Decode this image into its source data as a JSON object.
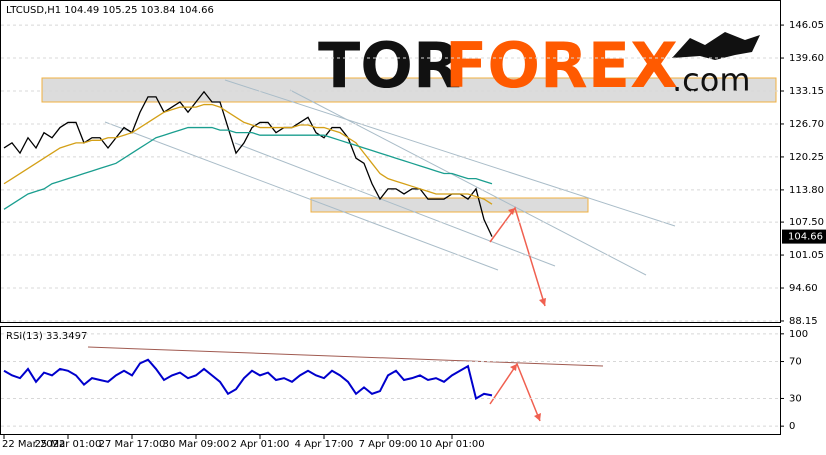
{
  "chart_data": [
    {
      "type": "line",
      "title": "LTCUSD,H1  104.49 105.25 103.84 104.66",
      "categories": [
        "22 Mar 2022",
        null,
        null,
        null,
        null,
        null,
        null,
        null,
        "25 Mar 01:00",
        null,
        null,
        null,
        null,
        null,
        null,
        null,
        "27 Mar 17:00",
        null,
        null,
        null,
        null,
        null,
        null,
        null,
        "30 Mar 09:00",
        null,
        null,
        null,
        null,
        null,
        null,
        null,
        "2 Apr 01:00",
        null,
        null,
        null,
        null,
        null,
        null,
        null,
        "4 Apr 17:00",
        null,
        null,
        null,
        null,
        null,
        null,
        null,
        "7 Apr 09:00",
        null,
        null,
        null,
        null,
        null,
        null,
        null,
        "10 Apr 01:00",
        null,
        null,
        null,
        null,
        null
      ],
      "series": [
        {
          "color": "#000000",
          "values": [
            122,
            123,
            121,
            124,
            122,
            125,
            124,
            126,
            127,
            127,
            123,
            124,
            124,
            122,
            124,
            126,
            125,
            129,
            132,
            132,
            129,
            130,
            131,
            129,
            131,
            133,
            131,
            131,
            126,
            121,
            123,
            126,
            127,
            127,
            125,
            126,
            126,
            127,
            128,
            125,
            124,
            126,
            126,
            124,
            120,
            119,
            115,
            112,
            114,
            114,
            113,
            114,
            114,
            112,
            112,
            112,
            113,
            113,
            112,
            114,
            108,
            104.66
          ]
        },
        {
          "color": "#d4a017",
          "values": [
            115,
            116,
            117,
            118,
            119,
            120,
            121,
            122,
            122.5,
            123,
            123,
            123.5,
            123.5,
            124,
            124,
            124.5,
            125,
            126,
            127,
            128,
            129,
            129.5,
            130,
            130,
            130,
            130.5,
            130.5,
            130,
            129,
            128,
            127,
            126.5,
            126,
            126,
            126,
            126,
            126,
            126.5,
            126.5,
            126,
            126,
            125.5,
            125,
            124,
            123,
            121,
            119,
            117,
            116,
            115.5,
            115,
            114.5,
            114,
            113.5,
            113,
            113,
            113,
            113,
            113,
            112.5,
            112,
            111
          ]
        },
        {
          "color": "#1a9e8f",
          "values": [
            110,
            111,
            112,
            113,
            113.5,
            114,
            115,
            115.5,
            116,
            116.5,
            117,
            117.5,
            118,
            118.5,
            119,
            120,
            121,
            122,
            123,
            124,
            124.5,
            125,
            125.5,
            126,
            126,
            126,
            126,
            125.5,
            125.5,
            125,
            125,
            125,
            124.5,
            124.5,
            124.5,
            124.5,
            124.5,
            124.5,
            124.5,
            124.5,
            124.5,
            124,
            123.5,
            123,
            122.5,
            122,
            121.5,
            121,
            120.5,
            120,
            119.5,
            119,
            118.5,
            118,
            117.5,
            117,
            117,
            116.5,
            116,
            116,
            115.5,
            115
          ]
        }
      ],
      "ylim": [
        87.95,
        150.76
      ],
      "yticks": [
        146.05,
        {
          "value": 139.6,
          "label": "139.60"
        },
        133.15,
        {
          "value": 126.7,
          "label": "126.70"
        },
        120.25,
        {
          "value": 113.8,
          "label": "113.80"
        },
        {
          "value": 107.5,
          "label": "107.50"
        },
        101.05,
        {
          "value": 94.6,
          "label": "94.60"
        },
        88.15
      ],
      "price_tag": 104.66,
      "grid": true,
      "logo": {
        "part1": "TOR",
        "part2": "FOREX",
        "part3": ".com"
      }
    },
    {
      "type": "line",
      "title": "RSI(13) 33.3497",
      "series": [
        {
          "color": "#0000cc",
          "values": [
            60,
            55,
            52,
            62,
            48,
            58,
            55,
            62,
            60,
            55,
            45,
            52,
            50,
            48,
            55,
            60,
            55,
            68,
            72,
            62,
            50,
            55,
            58,
            52,
            55,
            62,
            55,
            48,
            35,
            40,
            52,
            60,
            55,
            58,
            50,
            52,
            48,
            55,
            60,
            55,
            52,
            60,
            55,
            48,
            35,
            42,
            35,
            38,
            55,
            60,
            50,
            52,
            55,
            50,
            52,
            48,
            55,
            60,
            65,
            30,
            35,
            33.35
          ]
        }
      ],
      "ylim": [
        -8.5,
        107.4
      ],
      "yticks": [
        100,
        70,
        30,
        0
      ],
      "grid": true
    }
  ]
}
